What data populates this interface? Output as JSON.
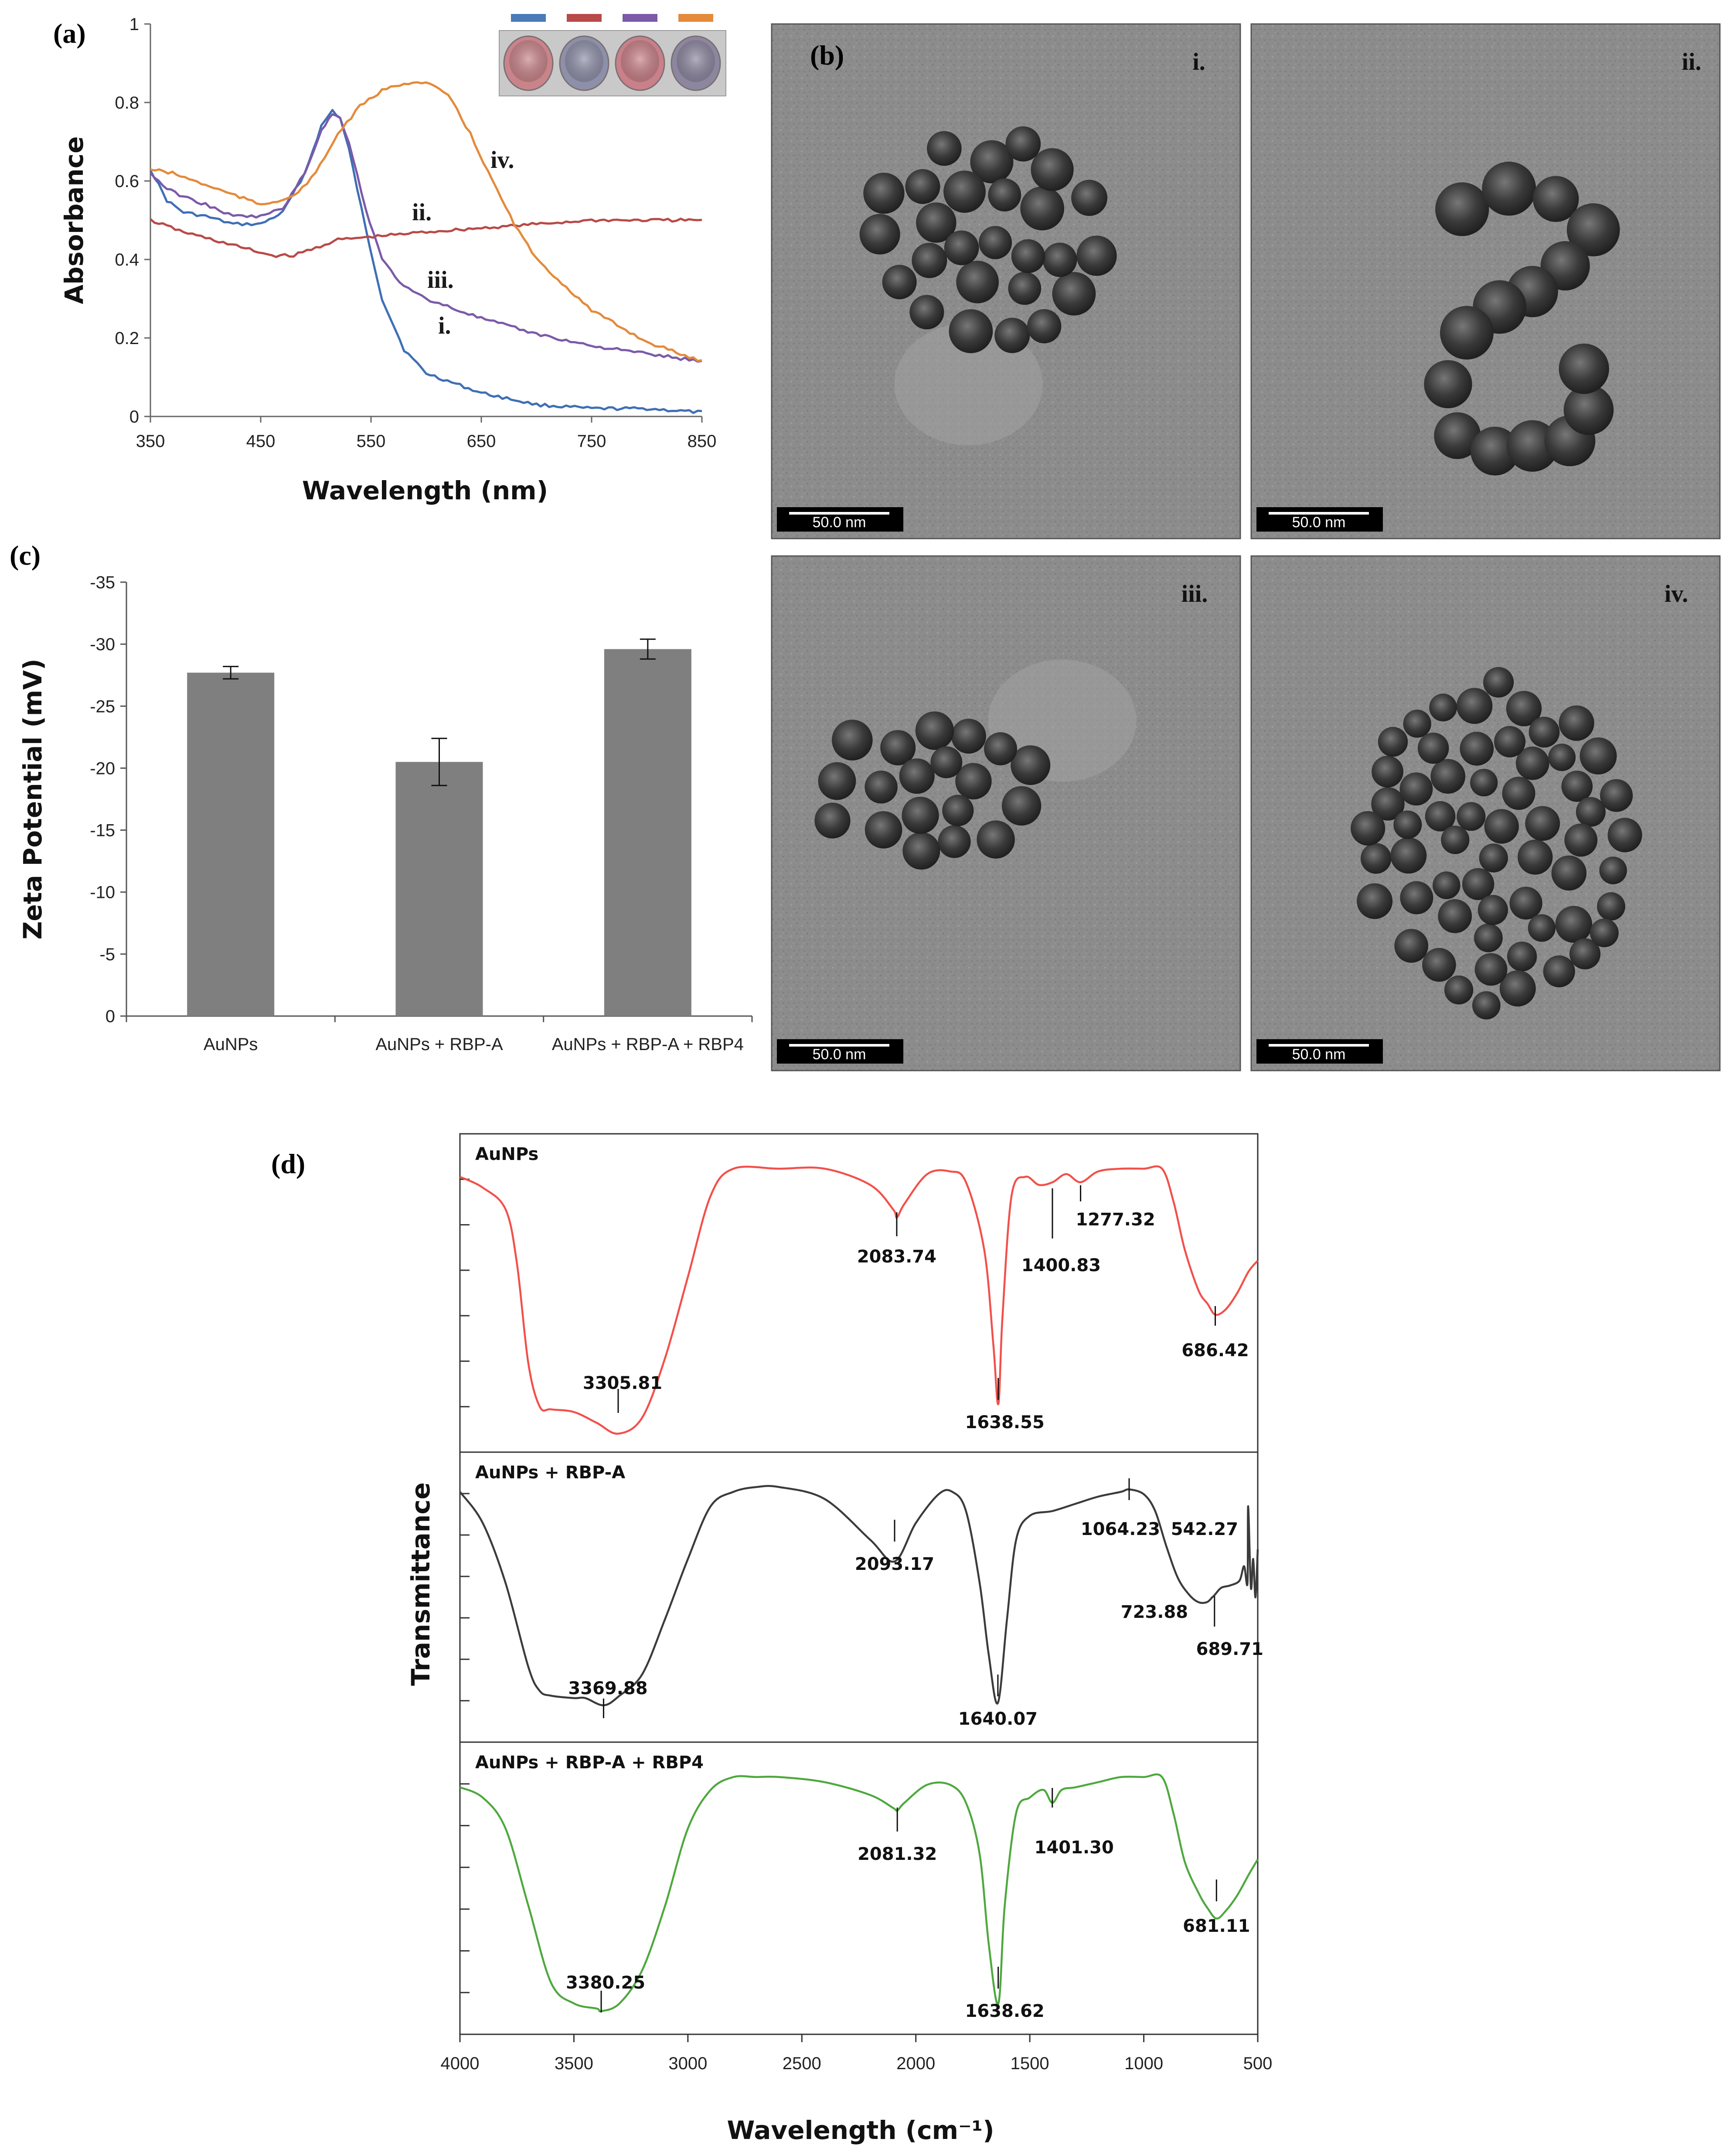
{
  "chart_data": [
    {
      "id": "a",
      "panel_label": "(a)",
      "type": "line",
      "xlabel": "Wavelength (nm)",
      "ylabel": "Absorbance",
      "xlim": [
        350,
        850
      ],
      "ylim": [
        0,
        1
      ],
      "xticks": [
        "350",
        "450",
        "550",
        "650",
        "750",
        "850"
      ],
      "yticks": [
        "0",
        "0.2",
        "0.4",
        "0.6",
        "0.8",
        "1"
      ],
      "inset_colors": [
        "#4a7ab8",
        "#b84a48",
        "#7b5aa8",
        "#e48a3a"
      ],
      "series": [
        {
          "name": "i.",
          "color": "#3f6fb6",
          "x": [
            350,
            365,
            380,
            400,
            425,
            450,
            470,
            490,
            505,
            515,
            522,
            530,
            545,
            560,
            580,
            600,
            650,
            700,
            750,
            800,
            850
          ],
          "y": [
            0.63,
            0.55,
            0.52,
            0.51,
            0.49,
            0.49,
            0.52,
            0.62,
            0.74,
            0.78,
            0.76,
            0.68,
            0.48,
            0.3,
            0.17,
            0.11,
            0.06,
            0.03,
            0.02,
            0.02,
            0.01
          ]
        },
        {
          "name": "ii.",
          "color": "#b84a48",
          "x": [
            350,
            380,
            420,
            460,
            480,
            500,
            520,
            560,
            600,
            650,
            700,
            750,
            800,
            850
          ],
          "y": [
            0.5,
            0.47,
            0.44,
            0.41,
            0.41,
            0.43,
            0.45,
            0.46,
            0.47,
            0.48,
            0.49,
            0.5,
            0.5,
            0.5
          ]
        },
        {
          "name": "iii.",
          "color": "#7b5aa8",
          "x": [
            350,
            365,
            380,
            400,
            425,
            450,
            470,
            490,
            505,
            515,
            522,
            530,
            545,
            560,
            580,
            600,
            650,
            700,
            750,
            800,
            850
          ],
          "y": [
            0.62,
            0.58,
            0.56,
            0.54,
            0.51,
            0.51,
            0.53,
            0.62,
            0.73,
            0.77,
            0.76,
            0.7,
            0.53,
            0.4,
            0.33,
            0.3,
            0.25,
            0.21,
            0.18,
            0.16,
            0.14
          ]
        },
        {
          "name": "iv.",
          "color": "#e48a3a",
          "x": [
            350,
            370,
            400,
            450,
            480,
            500,
            520,
            540,
            560,
            580,
            600,
            620,
            640,
            660,
            680,
            700,
            750,
            800,
            850
          ],
          "y": [
            0.63,
            0.62,
            0.59,
            0.54,
            0.56,
            0.62,
            0.72,
            0.79,
            0.83,
            0.85,
            0.85,
            0.82,
            0.72,
            0.6,
            0.49,
            0.4,
            0.27,
            0.19,
            0.14
          ]
        }
      ]
    },
    {
      "id": "c",
      "panel_label": "(c)",
      "type": "bar",
      "ylabel": "Zeta Potential (mV)",
      "ylim": [
        0,
        -35
      ],
      "yticks": [
        "0",
        "-5",
        "-10",
        "-15",
        "-20",
        "-25",
        "-30",
        "-35"
      ],
      "categories": [
        "AuNPs",
        "AuNPs + RBP-A",
        "AuNPs + RBP-A + RBP4"
      ],
      "values": [
        -27.7,
        -20.5,
        -29.6
      ],
      "errors": [
        0.5,
        1.9,
        0.8
      ],
      "bar_color": "#7f7f7f"
    },
    {
      "id": "d",
      "panel_label": "(d)",
      "type": "line",
      "ylabel": "Transmittance",
      "xlabel": "Wavelength (cm⁻¹)",
      "xlim": [
        4000,
        500
      ],
      "xticks": [
        "4000",
        "3500",
        "3000",
        "2500",
        "2000",
        "1500",
        "1000",
        "500"
      ],
      "series": [
        {
          "name": "AuNPs",
          "color": "#f2504a",
          "x": [
            4000,
            3900,
            3800,
            3750,
            3700,
            3650,
            3600,
            3500,
            3400,
            3305,
            3200,
            3100,
            3000,
            2900,
            2800,
            2600,
            2400,
            2200,
            2100,
            2083,
            2050,
            1950,
            1850,
            1780,
            1700,
            1660,
            1638,
            1620,
            1580,
            1520,
            1460,
            1400,
            1340,
            1277,
            1200,
            1100,
            1000,
            920,
            870,
            820,
            760,
            720,
            686,
            640,
            590,
            540,
            500
          ],
          "y": [
            0.03,
            0.07,
            0.15,
            0.35,
            0.72,
            0.88,
            0.89,
            0.9,
            0.94,
            0.98,
            0.92,
            0.7,
            0.4,
            0.1,
            0.0,
            0.0,
            0.0,
            0.06,
            0.15,
            0.18,
            0.13,
            0.02,
            0.01,
            0.05,
            0.3,
            0.65,
            0.87,
            0.55,
            0.1,
            0.03,
            0.06,
            0.05,
            0.02,
            0.05,
            0.01,
            0.0,
            0.0,
            0.0,
            0.12,
            0.3,
            0.45,
            0.5,
            0.54,
            0.52,
            0.46,
            0.38,
            0.34
          ]
        },
        {
          "name": "AuNPs + RBP-A",
          "color": "#3b3b3b",
          "x": [
            4000,
            3900,
            3800,
            3700,
            3650,
            3600,
            3500,
            3450,
            3369,
            3300,
            3200,
            3100,
            3000,
            2900,
            2800,
            2700,
            2600,
            2400,
            2200,
            2093,
            2000,
            1900,
            1840,
            1780,
            1720,
            1680,
            1640,
            1600,
            1560,
            1500,
            1400,
            1300,
            1200,
            1100,
            1064,
            1000,
            950,
            900,
            850,
            800,
            760,
            723,
            700,
            689,
            660,
            620,
            580,
            560,
            545,
            542,
            530,
            520,
            510,
            500
          ],
          "y": [
            0.02,
            0.15,
            0.4,
            0.75,
            0.85,
            0.87,
            0.88,
            0.88,
            0.91,
            0.87,
            0.78,
            0.55,
            0.3,
            0.08,
            0.02,
            0.0,
            0.0,
            0.05,
            0.22,
            0.31,
            0.15,
            0.03,
            0.02,
            0.1,
            0.4,
            0.7,
            0.9,
            0.55,
            0.22,
            0.12,
            0.1,
            0.07,
            0.04,
            0.02,
            0.01,
            0.03,
            0.1,
            0.25,
            0.38,
            0.45,
            0.48,
            0.48,
            0.46,
            0.45,
            0.42,
            0.41,
            0.39,
            0.33,
            0.4,
            0.08,
            0.42,
            0.3,
            0.46,
            0.26
          ]
        },
        {
          "name": "AuNPs + RBP-A + RBP4",
          "color": "#4ea83e",
          "x": [
            4000,
            3900,
            3800,
            3700,
            3600,
            3500,
            3400,
            3380,
            3300,
            3200,
            3100,
            3000,
            2900,
            2800,
            2700,
            2600,
            2400,
            2200,
            2100,
            2081,
            2050,
            1950,
            1850,
            1780,
            1720,
            1680,
            1638,
            1610,
            1560,
            1500,
            1440,
            1401,
            1360,
            1300,
            1200,
            1100,
            1000,
            920,
            870,
            820,
            760,
            720,
            681,
            640,
            590,
            540,
            500
          ],
          "y": [
            0.04,
            0.08,
            0.2,
            0.5,
            0.8,
            0.88,
            0.9,
            0.91,
            0.88,
            0.75,
            0.5,
            0.2,
            0.05,
            0.0,
            0.0,
            0.0,
            0.02,
            0.07,
            0.12,
            0.13,
            0.1,
            0.03,
            0.03,
            0.1,
            0.3,
            0.65,
            0.88,
            0.5,
            0.14,
            0.08,
            0.05,
            0.1,
            0.05,
            0.04,
            0.02,
            0.0,
            0.0,
            0.0,
            0.14,
            0.33,
            0.45,
            0.51,
            0.55,
            0.52,
            0.46,
            0.38,
            0.32
          ]
        }
      ],
      "annotations": [
        {
          "subplot": 0,
          "label": "2083.74",
          "x": 2083.74
        },
        {
          "subplot": 0,
          "label": "1400.83",
          "x": 1400.83
        },
        {
          "subplot": 0,
          "label": "1277.32",
          "x": 1277.32
        },
        {
          "subplot": 0,
          "label": "3305.81",
          "x": 3305.81
        },
        {
          "subplot": 0,
          "label": "1638.55",
          "x": 1638.55
        },
        {
          "subplot": 0,
          "label": "686.42",
          "x": 686.42
        },
        {
          "subplot": 1,
          "label": "3369.88",
          "x": 3369.88
        },
        {
          "subplot": 1,
          "label": "2093.17",
          "x": 2093.17
        },
        {
          "subplot": 1,
          "label": "1640.07",
          "x": 1640.07
        },
        {
          "subplot": 1,
          "label": "1064.23",
          "x": 1064.23
        },
        {
          "subplot": 1,
          "label": "542.27",
          "x": 542.27
        },
        {
          "subplot": 1,
          "label": "723.88",
          "x": 723.88
        },
        {
          "subplot": 1,
          "label": "689.71",
          "x": 689.71
        },
        {
          "subplot": 2,
          "label": "3380.25",
          "x": 3380.25
        },
        {
          "subplot": 2,
          "label": "2081.32",
          "x": 2081.32
        },
        {
          "subplot": 2,
          "label": "1401.30",
          "x": 1401.3
        },
        {
          "subplot": 2,
          "label": "1638.62",
          "x": 1638.62
        },
        {
          "subplot": 2,
          "label": "681.11",
          "x": 681.11
        }
      ]
    }
  ],
  "tem": {
    "panel_label": "(b)",
    "scale_bar": "50.0 nm",
    "panels": [
      {
        "label": "i.",
        "arrangement": "cluster"
      },
      {
        "label": "ii.",
        "arrangement": "chain"
      },
      {
        "label": "iii.",
        "arrangement": "cluster"
      },
      {
        "label": "iv.",
        "arrangement": "aggregate"
      }
    ]
  }
}
